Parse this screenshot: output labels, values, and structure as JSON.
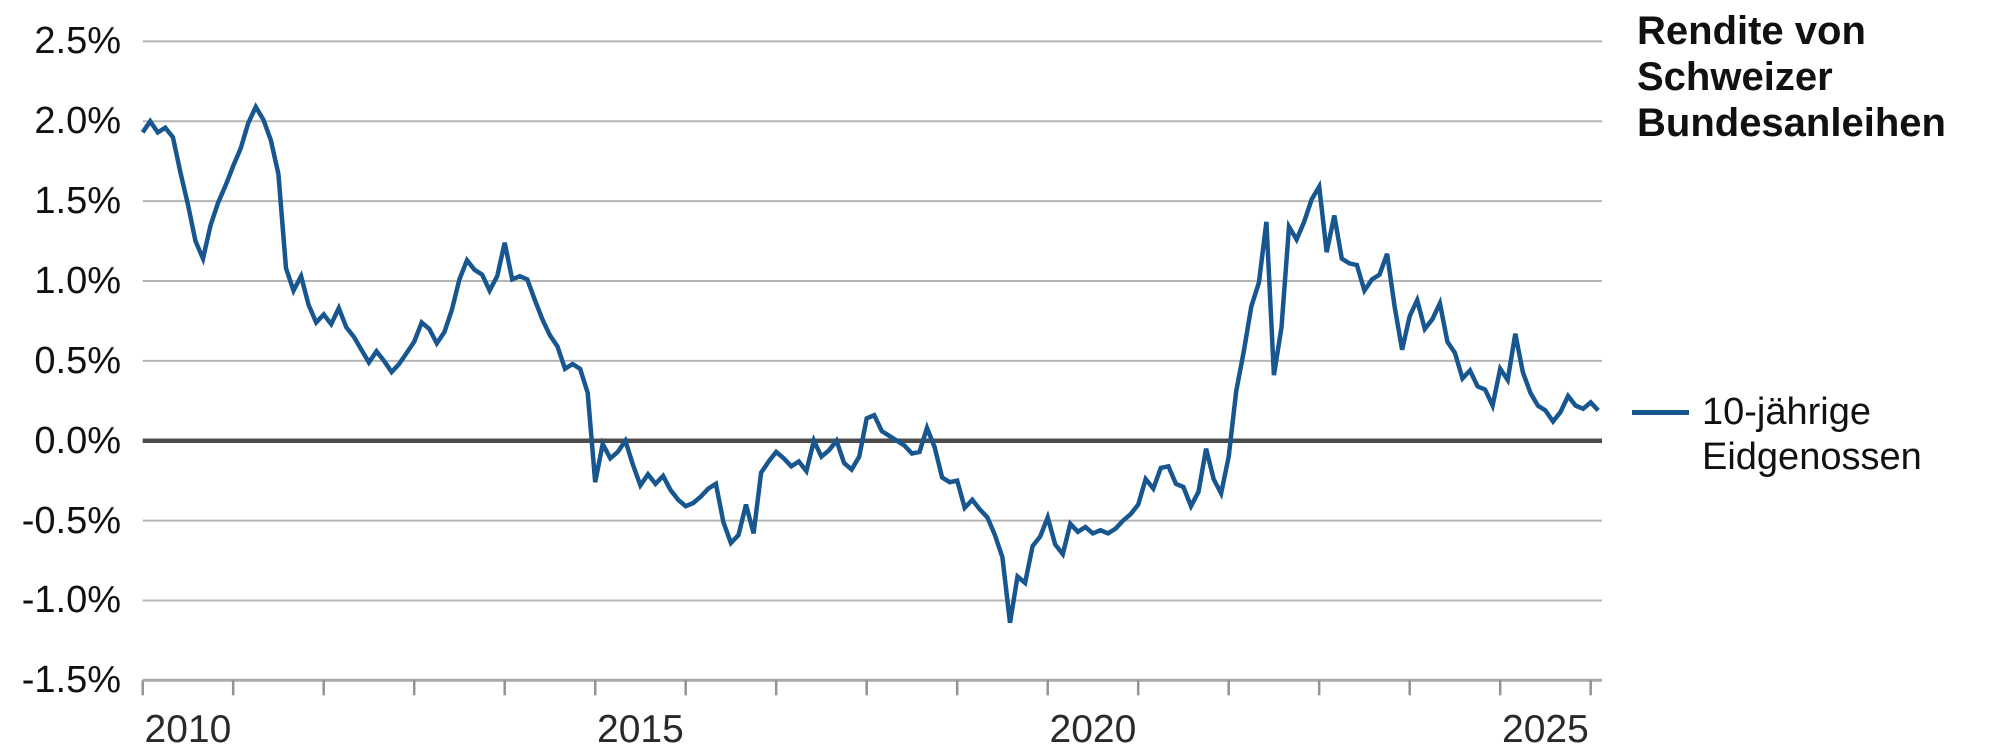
{
  "title": "Rendite von Schweizer\nBundesanleihen",
  "legend": {
    "series_label": "10-jährige\nEidgenossen"
  },
  "colors": {
    "background": "#ffffff",
    "line": "#17568f",
    "grid": "#b5b5b5",
    "zero_line": "#4c4c4c",
    "axis_line": "#ababab",
    "tick": "#939393",
    "text": "#111111"
  },
  "chart_data": {
    "type": "line",
    "title": "Rendite von Schweizer Bundesanleihen",
    "ylabel": "",
    "xlabel": "",
    "unit": "percent",
    "grid": "horizontal",
    "legend_position": "right",
    "ylim": [
      -1.5,
      2.5
    ],
    "xlim": [
      2010,
      2026.125
    ],
    "y_ticks": [
      {
        "value": 2.5,
        "label": "2.5%"
      },
      {
        "value": 2.0,
        "label": "2.0%"
      },
      {
        "value": 1.5,
        "label": "1.5%"
      },
      {
        "value": 1.0,
        "label": "1.0%"
      },
      {
        "value": 0.5,
        "label": "0.5%"
      },
      {
        "value": 0.0,
        "label": "0.0%"
      },
      {
        "value": -0.5,
        "label": "-0.5%"
      },
      {
        "value": -1.0,
        "label": "-1.0%"
      },
      {
        "value": -1.5,
        "label": "-1.5%"
      }
    ],
    "x_tick_years": [
      2010,
      2011,
      2012,
      2013,
      2014,
      2015,
      2016,
      2017,
      2018,
      2019,
      2020,
      2021,
      2022,
      2023,
      2024,
      2025,
      2026
    ],
    "x_label_years": [
      2010,
      2015,
      2020,
      2025
    ],
    "series": [
      {
        "name": "10-jährige Eidgenossen",
        "color": "#17568f",
        "frequency": "monthly",
        "start_year": 2010,
        "values": [
          1.93,
          2.0,
          1.93,
          1.96,
          1.9,
          1.68,
          1.48,
          1.25,
          1.14,
          1.35,
          1.49,
          1.6,
          1.72,
          1.83,
          1.99,
          2.09,
          2.01,
          1.88,
          1.67,
          1.08,
          0.94,
          1.03,
          0.85,
          0.74,
          0.79,
          0.73,
          0.83,
          0.71,
          0.65,
          0.57,
          0.49,
          0.56,
          0.5,
          0.43,
          0.48,
          0.55,
          0.62,
          0.74,
          0.7,
          0.61,
          0.68,
          0.82,
          1.01,
          1.13,
          1.07,
          1.04,
          0.94,
          1.03,
          1.24,
          1.01,
          1.03,
          1.01,
          0.88,
          0.76,
          0.66,
          0.59,
          0.45,
          0.48,
          0.45,
          0.3,
          -0.26,
          -0.02,
          -0.11,
          -0.07,
          0.0,
          -0.15,
          -0.28,
          -0.21,
          -0.27,
          -0.22,
          -0.31,
          -0.37,
          -0.41,
          -0.39,
          -0.35,
          -0.3,
          -0.27,
          -0.51,
          -0.64,
          -0.59,
          -0.4,
          -0.58,
          -0.2,
          -0.13,
          -0.07,
          -0.11,
          -0.16,
          -0.13,
          -0.19,
          0.0,
          -0.1,
          -0.06,
          0.0,
          -0.14,
          -0.18,
          -0.1,
          0.14,
          0.16,
          0.06,
          0.03,
          0.0,
          -0.03,
          -0.08,
          -0.07,
          0.08,
          -0.04,
          -0.23,
          -0.26,
          -0.25,
          -0.42,
          -0.37,
          -0.43,
          -0.48,
          -0.59,
          -0.73,
          -1.14,
          -0.85,
          -0.89,
          -0.66,
          -0.6,
          -0.48,
          -0.65,
          -0.71,
          -0.52,
          -0.57,
          -0.54,
          -0.58,
          -0.56,
          -0.58,
          -0.55,
          -0.5,
          -0.46,
          -0.4,
          -0.24,
          -0.3,
          -0.17,
          -0.16,
          -0.27,
          -0.29,
          -0.41,
          -0.32,
          -0.05,
          -0.24,
          -0.33,
          -0.1,
          0.31,
          0.56,
          0.84,
          0.99,
          1.37,
          0.41,
          0.71,
          1.34,
          1.26,
          1.37,
          1.51,
          1.59,
          1.18,
          1.41,
          1.14,
          1.11,
          1.1,
          0.94,
          1.01,
          1.04,
          1.17,
          0.84,
          0.57,
          0.78,
          0.88,
          0.7,
          0.76,
          0.86,
          0.62,
          0.55,
          0.39,
          0.44,
          0.34,
          0.32,
          0.22,
          0.45,
          0.38,
          0.67,
          0.43,
          0.3,
          0.22,
          0.19,
          0.12,
          0.18,
          0.28,
          0.22,
          0.2,
          0.24,
          0.19
        ]
      }
    ]
  }
}
